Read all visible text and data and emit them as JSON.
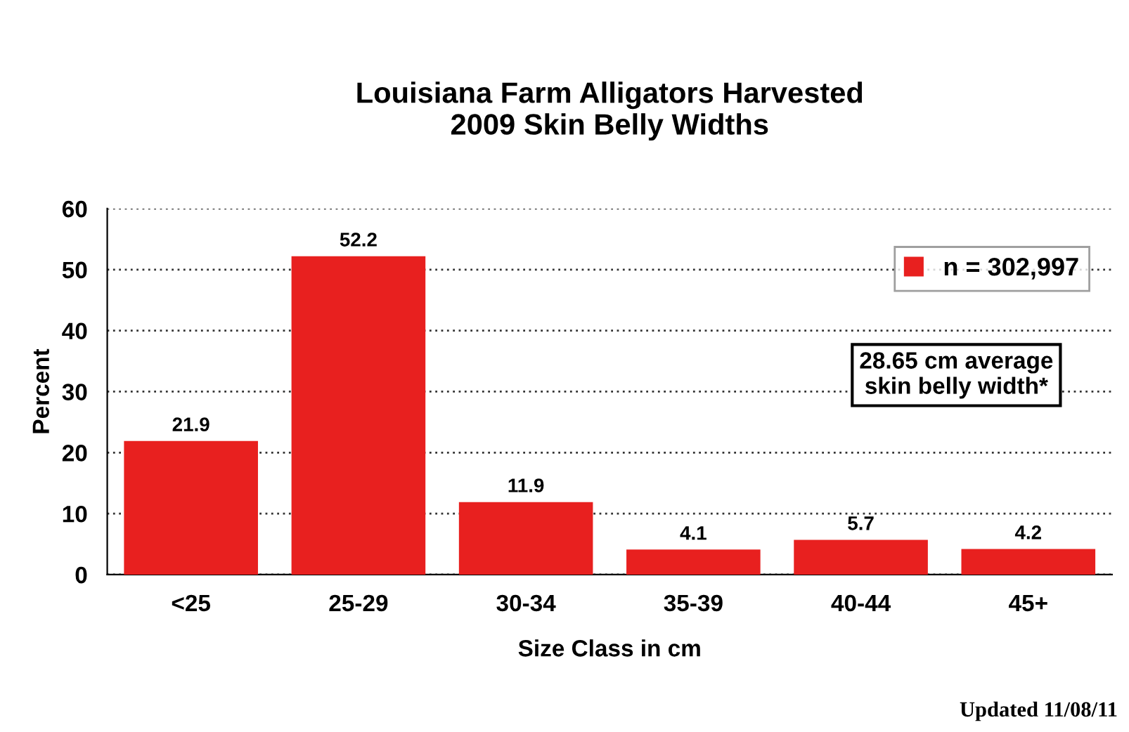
{
  "chart_data": {
    "type": "bar",
    "title": "Louisiana Farm Alligators Harvested\n2009 Skin Belly Widths",
    "xlabel": "Size Class in cm",
    "ylabel": "Percent",
    "categories": [
      "<25",
      "25-29",
      "30-34",
      "35-39",
      "40-44",
      "45+"
    ],
    "series": [
      {
        "name": "n = 302,997",
        "color": "#e8201f",
        "values": [
          21.9,
          52.2,
          11.9,
          4.1,
          5.7,
          4.2
        ]
      }
    ],
    "ylim": [
      0,
      60
    ],
    "yticks": [
      0,
      10,
      20,
      30,
      40,
      50,
      60
    ],
    "grid": "y",
    "legend": "top right",
    "data_labels": true,
    "annotations": [
      "28.65 cm average\nskin belly width*",
      "Updated 11/08/11"
    ]
  }
}
